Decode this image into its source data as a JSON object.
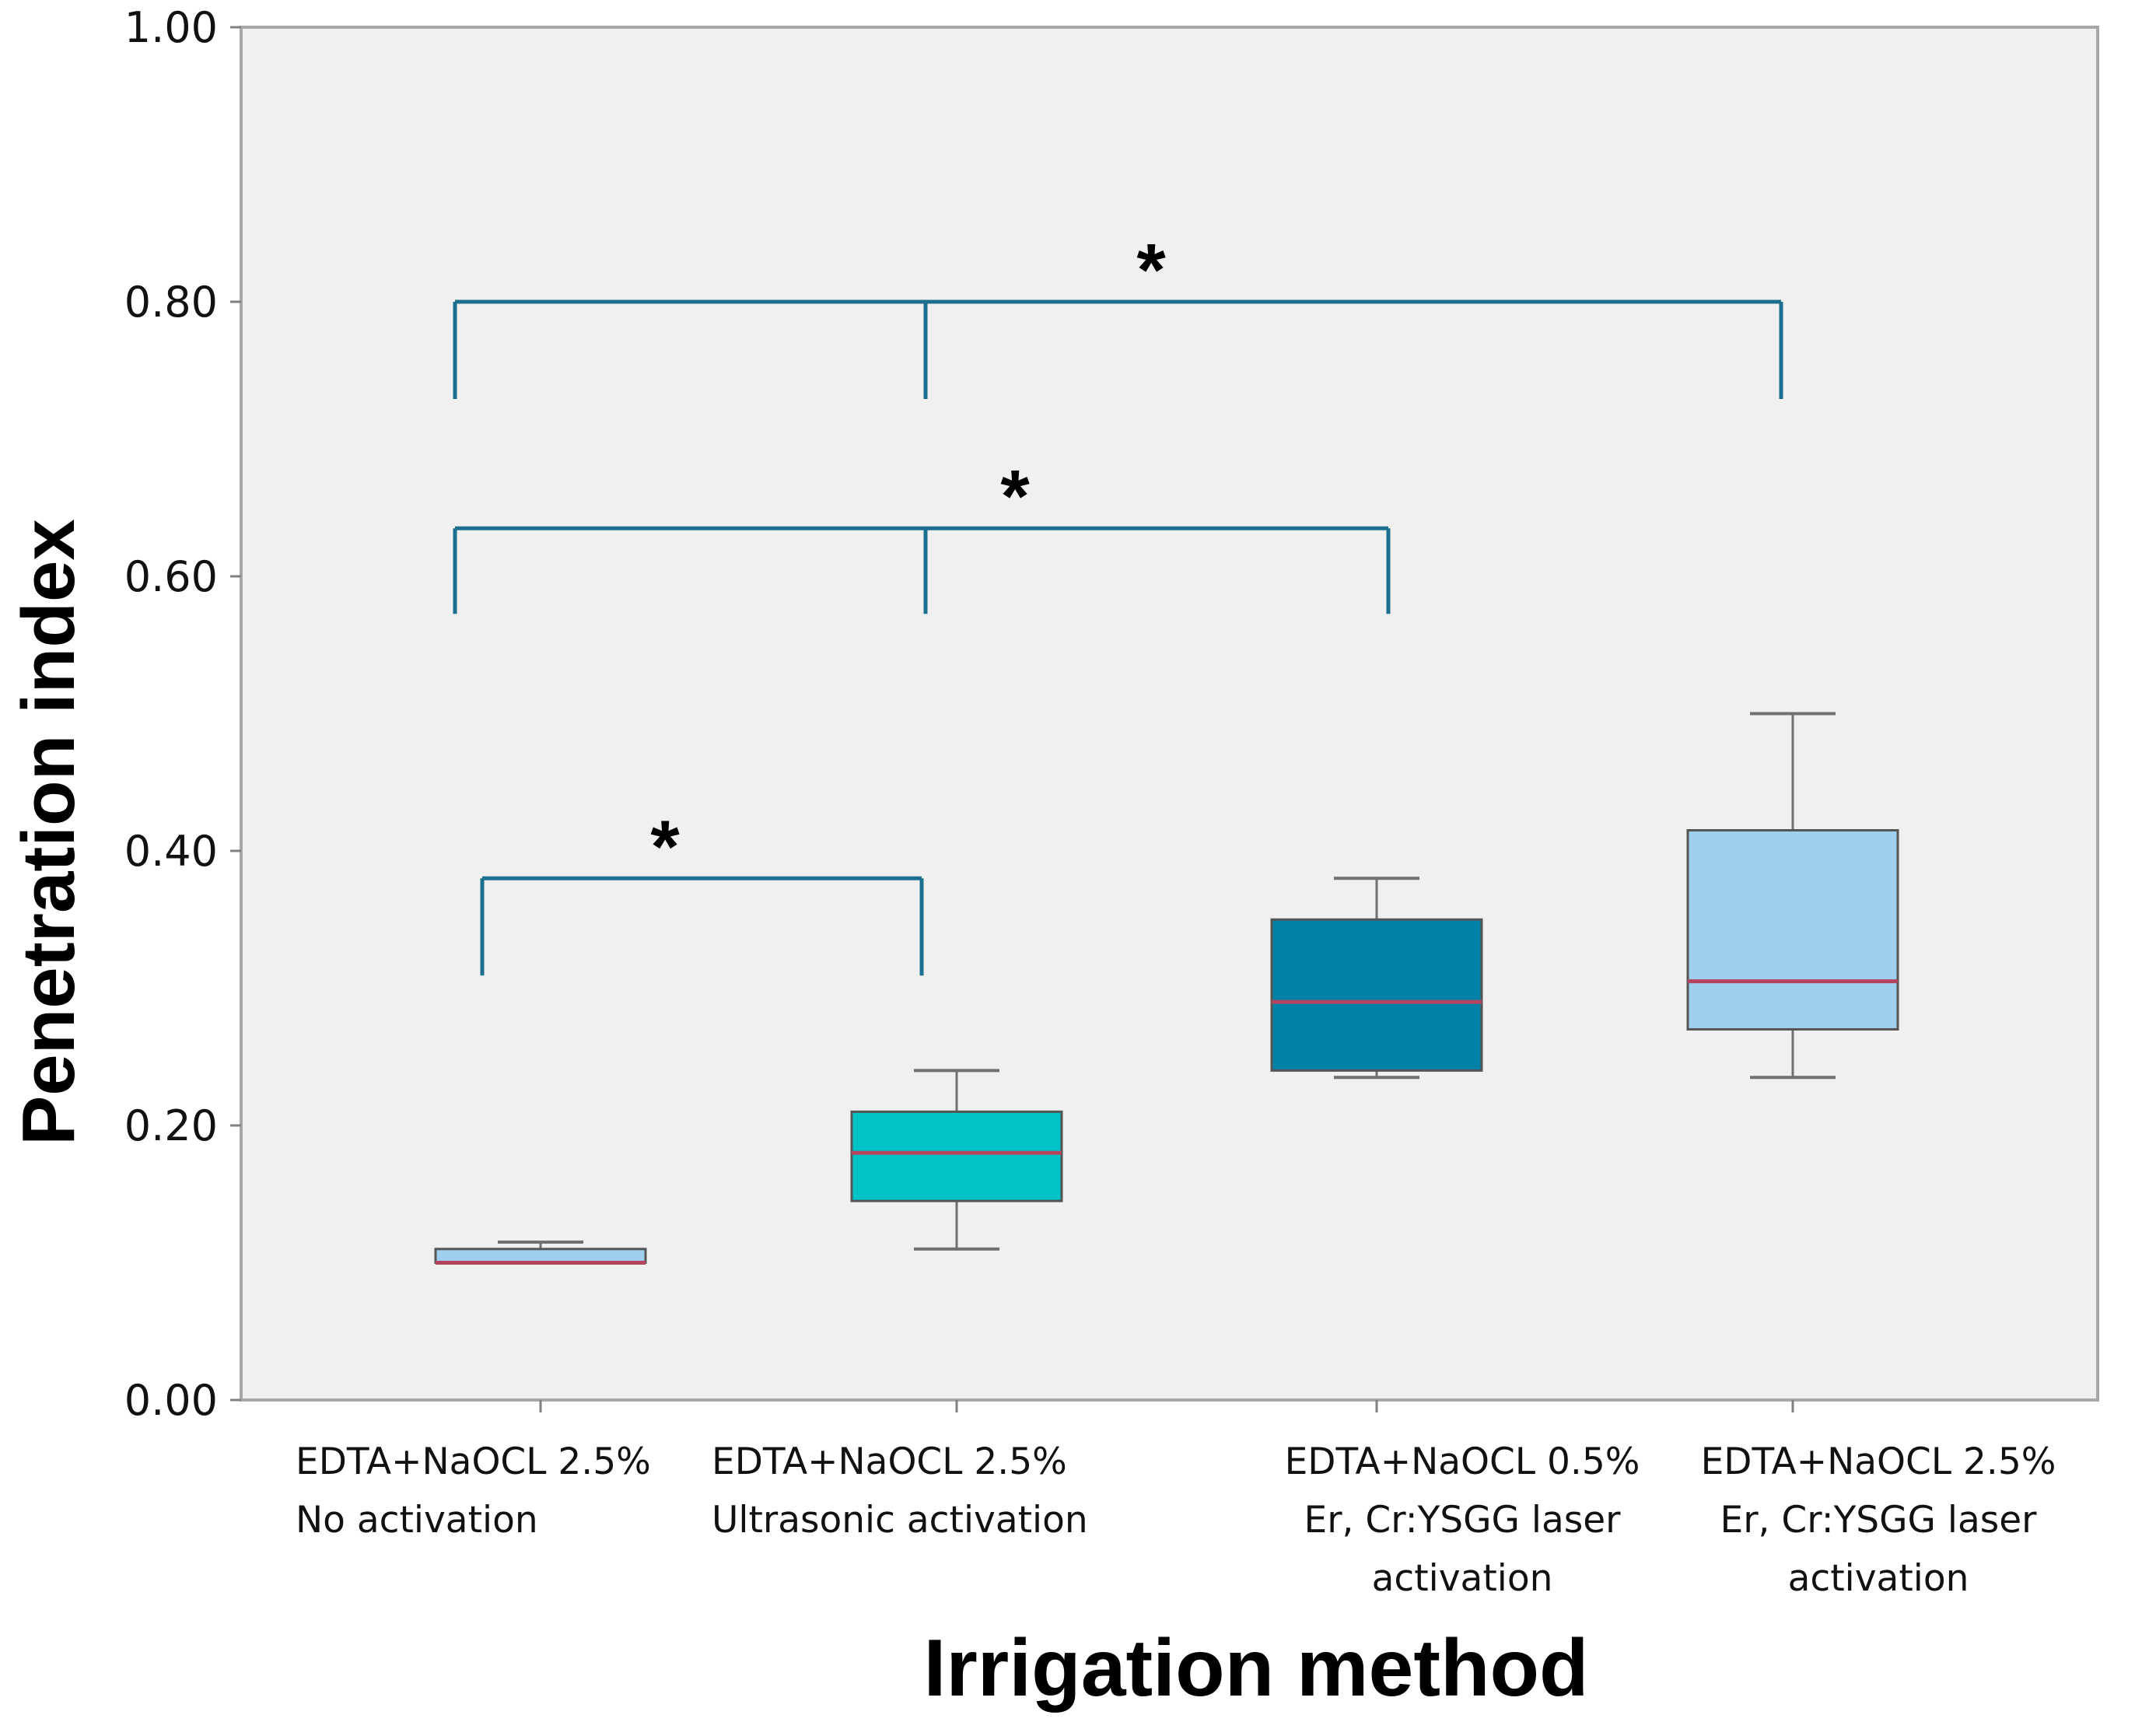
{
  "chart_data": {
    "type": "boxplot",
    "title": "",
    "xlabel": "Irrigation method",
    "ylabel": "Penetration index",
    "ylim": [
      0,
      1
    ],
    "yticks": [
      "0.00",
      "0.20",
      "0.40",
      "0.60",
      "0.80",
      "1.00"
    ],
    "categories": [
      {
        "lines": [
          "EDTA+NaOCL 2.5%",
          "No activation"
        ],
        "align": "left"
      },
      {
        "lines": [
          "EDTA+NaOCL 2.5%",
          "Ultrasonic activation"
        ],
        "align": "left"
      },
      {
        "lines": [
          "EDTA+NaOCL 0.5%",
          "Er, Cr:YSGG laser",
          "activation"
        ],
        "align": "center"
      },
      {
        "lines": [
          "EDTA+NaOCL 2.5%",
          "Er, Cr:YSGG laser",
          "activation"
        ],
        "align": "center"
      }
    ],
    "boxes": [
      {
        "min": 0.1,
        "q1": 0.1,
        "median": 0.1,
        "q3": 0.11,
        "max": 0.115,
        "color": "#9ecfee"
      },
      {
        "min": 0.11,
        "q1": 0.145,
        "median": 0.18,
        "q3": 0.21,
        "max": 0.24,
        "color": "#00c3c8"
      },
      {
        "min": 0.235,
        "q1": 0.24,
        "median": 0.29,
        "q3": 0.35,
        "max": 0.38,
        "color": "#0081a7"
      },
      {
        "min": 0.235,
        "q1": 0.27,
        "median": 0.305,
        "q3": 0.415,
        "max": 0.5,
        "color": "#9ecfee"
      }
    ],
    "significance": [
      {
        "label": "*",
        "groups": [
          0,
          1
        ],
        "y": 0.38
      },
      {
        "label": "*",
        "groups": [
          0,
          1,
          2
        ],
        "y": 0.635
      },
      {
        "label": "*",
        "groups": [
          0,
          1,
          3
        ],
        "y": 0.8
      }
    ],
    "colors": {
      "plot_bg": "#f0f0f0",
      "frame": "#a8a8a8",
      "whisker": "#707070",
      "median": "#b5445f",
      "bracket": "#1c6f8f"
    }
  }
}
